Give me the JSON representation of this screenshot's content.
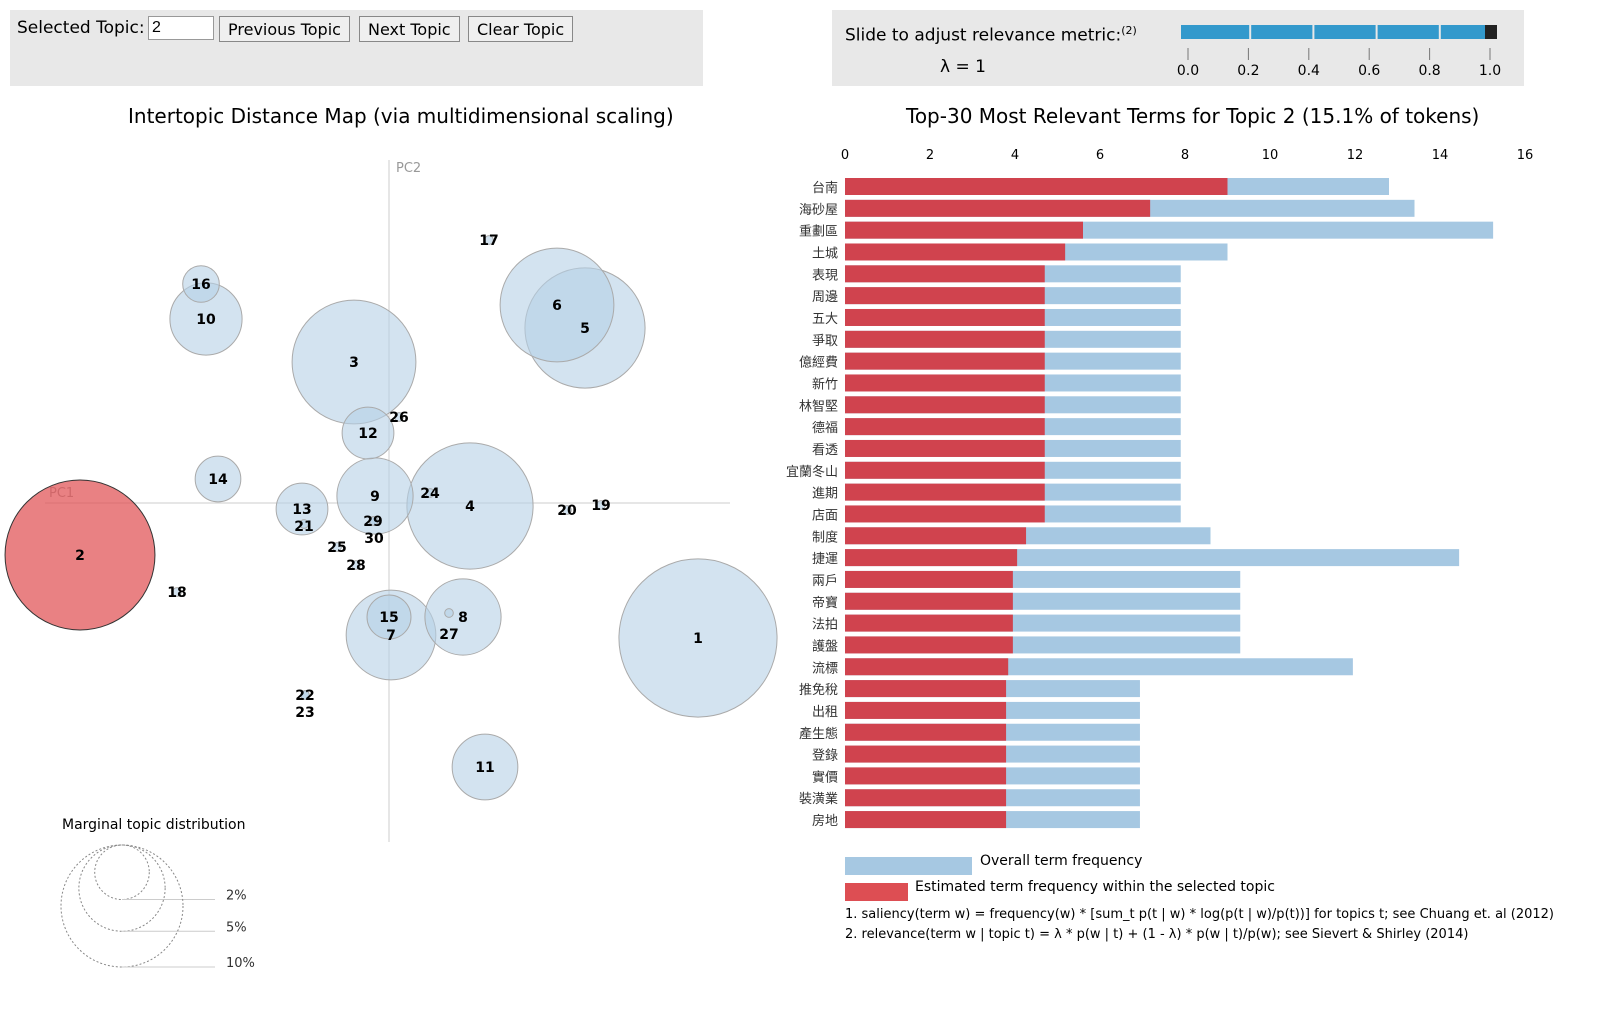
{
  "controls": {
    "selected_topic_label": "Selected Topic:",
    "selected_topic_value": "2",
    "prev": "Previous Topic",
    "next": "Next Topic",
    "clear": "Clear Topic"
  },
  "slider": {
    "label": "Slide to adjust relevance metric:",
    "footnote": "(2)",
    "lambda_text": "λ = 1",
    "value": 1,
    "ticks": [
      "0.0",
      "0.2",
      "0.4",
      "0.6",
      "0.8",
      "1.0"
    ],
    "color": "#3399cc"
  },
  "map": {
    "title": "Intertopic Distance Map (via multidimensional scaling)",
    "xaxis": "PC1",
    "yaxis": "PC2",
    "selected_topic": 2,
    "selected_color": "#e15759",
    "default_color": "#b5d1e6",
    "topics": [
      {
        "id": 1,
        "pc1": 3.09,
        "pc2": -1.35,
        "pct": 16.8
      },
      {
        "id": 2,
        "pc1": -3.09,
        "pc2": -0.52,
        "pct": 15.1
      },
      {
        "id": 3,
        "pc1": -0.35,
        "pc2": 1.41,
        "pct": 10.3
      },
      {
        "id": 4,
        "pc1": 0.81,
        "pc2": -0.03,
        "pct": 10.7
      },
      {
        "id": 5,
        "pc1": 1.96,
        "pc2": 1.75,
        "pct": 9.7
      },
      {
        "id": 6,
        "pc1": 1.68,
        "pc2": 1.98,
        "pct": 8.7
      },
      {
        "id": 7,
        "pc1": 0.02,
        "pc2": -1.32,
        "pct": 5.4
      },
      {
        "id": 8,
        "pc1": 0.74,
        "pc2": -1.14,
        "pct": 3.9
      },
      {
        "id": 9,
        "pc1": -0.14,
        "pc2": 0.07,
        "pct": 3.9
      },
      {
        "id": 10,
        "pc1": -1.83,
        "pc2": 1.84,
        "pct": 3.5
      },
      {
        "id": 11,
        "pc1": 0.96,
        "pc2": -2.64,
        "pct": 2.9
      },
      {
        "id": 12,
        "pc1": -0.21,
        "pc2": 0.7,
        "pct": 1.8
      },
      {
        "id": 13,
        "pc1": -0.87,
        "pc2": -0.06,
        "pct": 1.8
      },
      {
        "id": 14,
        "pc1": -1.71,
        "pc2": 0.24,
        "pct": 1.4
      },
      {
        "id": 15,
        "pc1": 0.0,
        "pc2": -1.14,
        "pct": 1.3
      },
      {
        "id": 16,
        "pc1": -1.88,
        "pc2": 2.19,
        "pct": 0.9
      },
      {
        "id": 17,
        "pc1": 1.0,
        "pc2": 2.63,
        "pct": 0.05
      },
      {
        "id": 18,
        "pc1": -2.12,
        "pc2": -0.89,
        "pct": 0.05
      },
      {
        "id": 19,
        "pc1": 2.12,
        "pc2": -0.02,
        "pct": 0.05
      },
      {
        "id": 20,
        "pc1": 1.78,
        "pc2": -0.07,
        "pct": 0.05
      },
      {
        "id": 21,
        "pc1": -0.85,
        "pc2": -0.21,
        "pct": 0.05
      },
      {
        "id": 22,
        "pc1": -0.84,
        "pc2": -1.92,
        "pct": 0.05
      },
      {
        "id": 23,
        "pc1": -0.84,
        "pc2": -1.92,
        "pct": 0.05
      },
      {
        "id": 24,
        "pc1": 0.41,
        "pc2": 0.1,
        "pct": 0.05
      },
      {
        "id": 25,
        "pc1": -0.52,
        "pc2": -0.44,
        "pct": 0.05
      },
      {
        "id": 26,
        "pc1": 0.1,
        "pc2": 0.86,
        "pct": 0.05
      },
      {
        "id": 27,
        "pc1": 0.6,
        "pc2": -1.1,
        "pct": 0.05
      },
      {
        "id": 28,
        "pc1": -0.33,
        "pc2": -0.62,
        "pct": 0.05
      },
      {
        "id": 29,
        "pc1": -0.16,
        "pc2": -0.18,
        "pct": 0.05
      },
      {
        "id": 30,
        "pc1": -0.15,
        "pc2": -0.18,
        "pct": 0.05
      }
    ],
    "marginal": {
      "title": "Marginal topic distribution",
      "levels": [
        {
          "pct": 2,
          "label": "2%"
        },
        {
          "pct": 5,
          "label": "5%"
        },
        {
          "pct": 10,
          "label": "10%"
        }
      ]
    }
  },
  "chart_data": {
    "type": "bar",
    "title": "Top-30 Most Relevant Terms for Topic 2 (15.1% of tokens)",
    "xlim": [
      0,
      16
    ],
    "ticks": [
      "0",
      "2",
      "4",
      "6",
      "8",
      "10",
      "12",
      "14",
      "16"
    ],
    "categories": [
      "台南",
      "海砂屋",
      "重劃區",
      "土城",
      "表現",
      "周邊",
      "五大",
      "爭取",
      "億經費",
      "新竹",
      "林智堅",
      "德福",
      "看透",
      "宜蘭冬山",
      "進期",
      "店面",
      "制度",
      "捷運",
      "兩戶",
      "帝寶",
      "法拍",
      "護盤",
      "流標",
      "推免稅",
      "出租",
      "產生態",
      "登錄",
      "實價",
      "裝潢業",
      "房地"
    ],
    "series": [
      {
        "name": "Overall term frequency",
        "color": "#a6c8e2",
        "values": [
          12.8,
          13.4,
          15.25,
          9.0,
          7.9,
          7.9,
          7.9,
          7.9,
          7.9,
          7.9,
          7.9,
          7.9,
          7.9,
          7.9,
          7.9,
          7.9,
          8.6,
          14.45,
          9.3,
          9.3,
          9.3,
          9.3,
          11.95,
          6.94,
          6.94,
          6.94,
          6.94,
          6.94,
          6.94,
          6.94
        ]
      },
      {
        "name": "Estimated term frequency within the selected topic",
        "color": "#d0434e",
        "values": [
          9.0,
          7.18,
          5.6,
          5.18,
          4.7,
          4.7,
          4.7,
          4.7,
          4.7,
          4.7,
          4.7,
          4.7,
          4.7,
          4.7,
          4.7,
          4.7,
          4.26,
          4.05,
          3.95,
          3.95,
          3.95,
          3.95,
          3.84,
          3.79,
          3.79,
          3.79,
          3.79,
          3.79,
          3.79,
          3.79
        ]
      }
    ]
  },
  "footnotes": [
    "1. saliency(term w) = frequency(w) * [sum_t p(t | w) * log(p(t | w)/p(t))] for topics t; see Chuang et. al (2012)",
    "2. relevance(term w | topic t) = λ * p(w | t) + (1 - λ) * p(w | t)/p(w); see Sievert & Shirley (2014)"
  ]
}
